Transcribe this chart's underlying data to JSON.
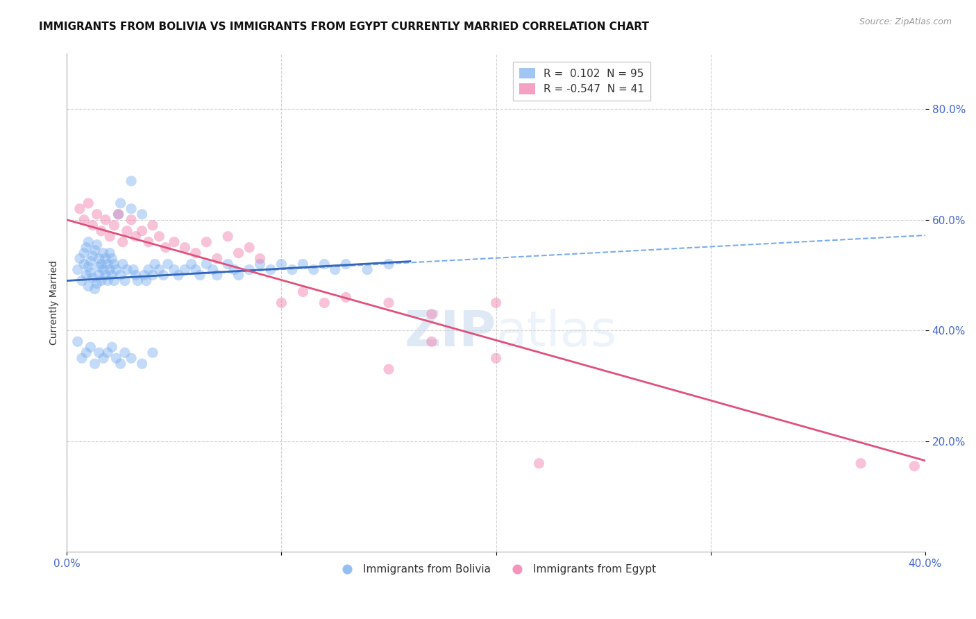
{
  "title": "IMMIGRANTS FROM BOLIVIA VS IMMIGRANTS FROM EGYPT CURRENTLY MARRIED CORRELATION CHART",
  "source": "Source: ZipAtlas.com",
  "ylabel": "Currently Married",
  "xlim": [
    0.0,
    0.4
  ],
  "ylim": [
    0.0,
    0.9
  ],
  "y_ticks": [
    0.2,
    0.4,
    0.6,
    0.8
  ],
  "y_tick_labels": [
    "20.0%",
    "40.0%",
    "60.0%",
    "80.0%"
  ],
  "bolivia_color": "#7aaff0",
  "egypt_color": "#f07aaa",
  "bolivia_R": 0.102,
  "bolivia_N": 95,
  "egypt_R": -0.547,
  "egypt_N": 41,
  "legend_label_bolivia": "Immigrants from Bolivia",
  "legend_label_egypt": "Immigrants from Egypt",
  "bolivia_scatter_x": [
    0.005,
    0.006,
    0.007,
    0.008,
    0.008,
    0.009,
    0.009,
    0.01,
    0.01,
    0.01,
    0.011,
    0.011,
    0.012,
    0.012,
    0.013,
    0.013,
    0.014,
    0.014,
    0.015,
    0.015,
    0.015,
    0.016,
    0.016,
    0.017,
    0.017,
    0.018,
    0.018,
    0.019,
    0.019,
    0.02,
    0.02,
    0.021,
    0.021,
    0.022,
    0.022,
    0.023,
    0.024,
    0.025,
    0.025,
    0.026,
    0.027,
    0.028,
    0.03,
    0.03,
    0.031,
    0.032,
    0.033,
    0.035,
    0.036,
    0.037,
    0.038,
    0.04,
    0.041,
    0.043,
    0.045,
    0.047,
    0.05,
    0.052,
    0.055,
    0.058,
    0.06,
    0.062,
    0.065,
    0.068,
    0.07,
    0.075,
    0.078,
    0.08,
    0.085,
    0.09,
    0.095,
    0.1,
    0.105,
    0.11,
    0.115,
    0.12,
    0.125,
    0.13,
    0.14,
    0.15,
    0.005,
    0.007,
    0.009,
    0.011,
    0.013,
    0.015,
    0.017,
    0.019,
    0.021,
    0.023,
    0.025,
    0.027,
    0.03,
    0.035,
    0.04
  ],
  "bolivia_scatter_y": [
    0.51,
    0.53,
    0.49,
    0.52,
    0.54,
    0.5,
    0.55,
    0.48,
    0.56,
    0.515,
    0.525,
    0.505,
    0.535,
    0.495,
    0.545,
    0.475,
    0.555,
    0.485,
    0.515,
    0.53,
    0.5,
    0.52,
    0.49,
    0.51,
    0.54,
    0.5,
    0.53,
    0.49,
    0.52,
    0.51,
    0.54,
    0.5,
    0.53,
    0.49,
    0.52,
    0.51,
    0.61,
    0.63,
    0.5,
    0.52,
    0.49,
    0.51,
    0.62,
    0.67,
    0.51,
    0.5,
    0.49,
    0.61,
    0.5,
    0.49,
    0.51,
    0.5,
    0.52,
    0.51,
    0.5,
    0.52,
    0.51,
    0.5,
    0.51,
    0.52,
    0.51,
    0.5,
    0.52,
    0.51,
    0.5,
    0.52,
    0.51,
    0.5,
    0.51,
    0.52,
    0.51,
    0.52,
    0.51,
    0.52,
    0.51,
    0.52,
    0.51,
    0.52,
    0.51,
    0.52,
    0.38,
    0.35,
    0.36,
    0.37,
    0.34,
    0.36,
    0.35,
    0.36,
    0.37,
    0.35,
    0.34,
    0.36,
    0.35,
    0.34,
    0.36
  ],
  "egypt_scatter_x": [
    0.006,
    0.008,
    0.01,
    0.012,
    0.014,
    0.016,
    0.018,
    0.02,
    0.022,
    0.024,
    0.026,
    0.028,
    0.03,
    0.032,
    0.035,
    0.038,
    0.04,
    0.043,
    0.046,
    0.05,
    0.055,
    0.06,
    0.065,
    0.07,
    0.075,
    0.08,
    0.085,
    0.09,
    0.1,
    0.11,
    0.12,
    0.13,
    0.15,
    0.17,
    0.2,
    0.22,
    0.15,
    0.2,
    0.37,
    0.395,
    0.17
  ],
  "egypt_scatter_y": [
    0.62,
    0.6,
    0.63,
    0.59,
    0.61,
    0.58,
    0.6,
    0.57,
    0.59,
    0.61,
    0.56,
    0.58,
    0.6,
    0.57,
    0.58,
    0.56,
    0.59,
    0.57,
    0.55,
    0.56,
    0.55,
    0.54,
    0.56,
    0.53,
    0.57,
    0.54,
    0.55,
    0.53,
    0.45,
    0.47,
    0.45,
    0.46,
    0.45,
    0.43,
    0.45,
    0.16,
    0.33,
    0.35,
    0.16,
    0.155,
    0.38
  ],
  "bolivia_solid_line_x": [
    0.0,
    0.16
  ],
  "bolivia_solid_line_y": [
    0.49,
    0.525
  ],
  "bolivia_dashed_line_x": [
    0.0,
    0.4
  ],
  "bolivia_dashed_line_y": [
    0.49,
    0.572
  ],
  "egypt_line_x": [
    0.0,
    0.4
  ],
  "egypt_line_y": [
    0.6,
    0.165
  ],
  "watermark_zip": "ZIP",
  "watermark_atlas": "atlas",
  "background_color": "#ffffff",
  "grid_color": "#cccccc",
  "title_fontsize": 11,
  "axis_label_fontsize": 10,
  "tick_fontsize": 11,
  "tick_color": "#4466cc",
  "legend_fontsize": 11,
  "marker_size": 11,
  "marker_alpha": 0.45
}
